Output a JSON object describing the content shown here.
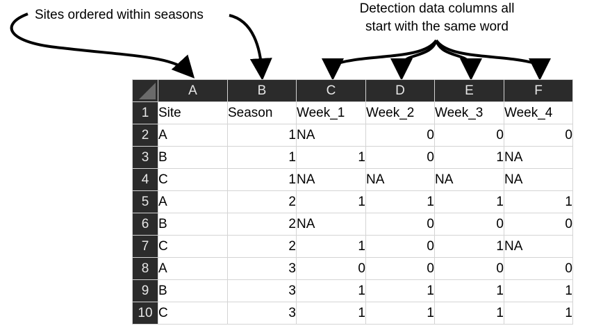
{
  "annotations": {
    "left": "Sites ordered within seasons",
    "right_line1": "Detection data columns all",
    "right_line2": "start with the same word"
  },
  "spreadsheet": {
    "column_letters": [
      "A",
      "B",
      "C",
      "D",
      "E",
      "F"
    ],
    "row_numbers": [
      "1",
      "2",
      "3",
      "4",
      "5",
      "6",
      "7",
      "8",
      "9",
      "10"
    ],
    "rows": [
      [
        "Site",
        "Season",
        "Week_1",
        "Week_2",
        "Week_3",
        "Week_4"
      ],
      [
        "A",
        "1",
        "NA",
        "0",
        "0",
        "0"
      ],
      [
        "B",
        "1",
        "1",
        "0",
        "1",
        "NA"
      ],
      [
        "C",
        "1",
        "NA",
        "NA",
        "NA",
        "NA"
      ],
      [
        "A",
        "2",
        "1",
        "1",
        "1",
        "1"
      ],
      [
        "B",
        "2",
        "NA",
        "0",
        "0",
        "0"
      ],
      [
        "C",
        "2",
        "1",
        "0",
        "1",
        "NA"
      ],
      [
        "A",
        "3",
        "0",
        "0",
        "0",
        "0"
      ],
      [
        "B",
        "3",
        "1",
        "1",
        "1",
        "1"
      ],
      [
        "C",
        "3",
        "1",
        "1",
        "1",
        "1"
      ]
    ]
  },
  "colors": {
    "header_bg": "#2b2b2b",
    "header_text": "#e6e6e6",
    "gridline": "#d4d4d4"
  }
}
